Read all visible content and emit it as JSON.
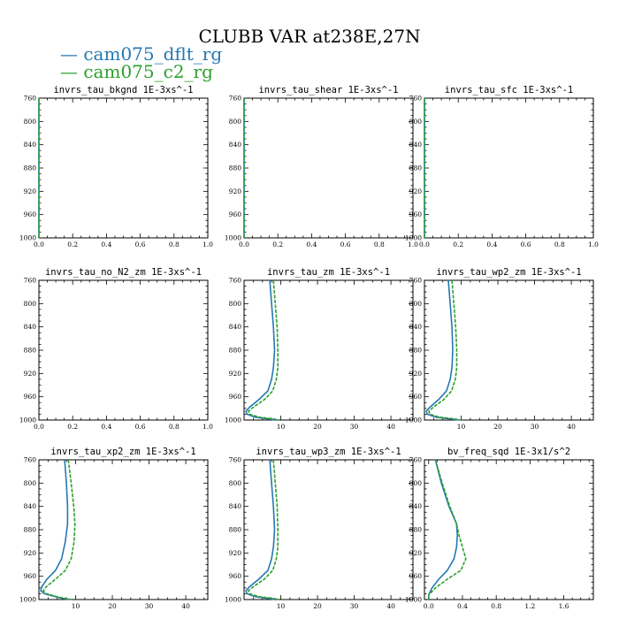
{
  "title": "CLUBB VAR at238E,27N",
  "colors": {
    "series0": "#2478b4",
    "series1": "#2ca02c"
  },
  "legend": [
    {
      "label": "cam075_dflt_rg",
      "color": "#2478b4"
    },
    {
      "label": "cam075_c2_rg",
      "color": "#2ca02c"
    }
  ],
  "chart_data": [
    {
      "type": "line",
      "title": "invrs_tau_bkgnd   1E-3xs^-1",
      "xlim": [
        0,
        1
      ],
      "ylim": [
        760,
        1000
      ],
      "y_inverted": true,
      "xticks": [
        0.0,
        0.2,
        0.4,
        0.6,
        0.8,
        1.0
      ],
      "xtick_labels": [
        "0.0",
        "0.2",
        "0.4",
        "0.6",
        "0.8",
        "1.0"
      ],
      "yticks": [
        760,
        800,
        840,
        880,
        920,
        960,
        1000
      ],
      "series": [
        {
          "name": "cam075_dflt_rg",
          "x": [
            0,
            0,
            0,
            0,
            0,
            0,
            0
          ],
          "y": [
            760,
            800,
            840,
            880,
            920,
            960,
            1000
          ]
        },
        {
          "name": "cam075_c2_rg",
          "x": [
            0,
            0,
            0,
            0,
            0,
            0,
            0
          ],
          "y": [
            760,
            800,
            840,
            880,
            920,
            960,
            1000
          ]
        }
      ]
    },
    {
      "type": "line",
      "title": "invrs_tau_shear   1E-3xs^-1",
      "xlim": [
        0,
        1
      ],
      "ylim": [
        760,
        1000
      ],
      "y_inverted": true,
      "xticks": [
        0.0,
        0.2,
        0.4,
        0.6,
        0.8,
        1.0
      ],
      "xtick_labels": [
        "0.0",
        "0.2",
        "0.4",
        "0.6",
        "0.8",
        "1.0"
      ],
      "yticks": [
        760,
        800,
        840,
        880,
        920,
        960,
        1000
      ],
      "series": [
        {
          "name": "cam075_dflt_rg",
          "x": [
            0,
            0,
            0,
            0,
            0,
            0,
            0
          ],
          "y": [
            760,
            800,
            840,
            880,
            920,
            960,
            1000
          ]
        },
        {
          "name": "cam075_c2_rg",
          "x": [
            0,
            0,
            0,
            0,
            0,
            0,
            0
          ],
          "y": [
            760,
            800,
            840,
            880,
            920,
            960,
            1000
          ]
        }
      ]
    },
    {
      "type": "line",
      "title": "invrs_tau_sfc   1E-3xs^-1",
      "xlim": [
        0,
        1
      ],
      "ylim": [
        760,
        1000
      ],
      "y_inverted": true,
      "xticks": [
        0.0,
        0.2,
        0.4,
        0.6,
        0.8,
        1.0
      ],
      "xtick_labels": [
        "0.0",
        "0.2",
        "0.4",
        "0.6",
        "0.8",
        "1.0"
      ],
      "yticks": [
        760,
        800,
        840,
        880,
        920,
        960,
        1000
      ],
      "series": [
        {
          "name": "cam075_dflt_rg",
          "x": [
            0,
            0,
            0,
            0,
            0,
            0,
            0
          ],
          "y": [
            760,
            800,
            840,
            880,
            920,
            960,
            1000
          ]
        },
        {
          "name": "cam075_c2_rg",
          "x": [
            0,
            0,
            0,
            0,
            0,
            0,
            0
          ],
          "y": [
            760,
            800,
            840,
            880,
            920,
            960,
            1000
          ]
        }
      ]
    },
    {
      "type": "line",
      "title": "invrs_tau_no_N2_zm   1E-3xs^-1",
      "xlim": [
        0,
        1
      ],
      "ylim": [
        760,
        1000
      ],
      "y_inverted": true,
      "xticks": [
        0.0,
        0.2,
        0.4,
        0.6,
        0.8,
        1.0
      ],
      "xtick_labels": [
        "0.0",
        "0.2",
        "0.4",
        "0.6",
        "0.8",
        "1.0"
      ],
      "yticks": [
        760,
        800,
        840,
        880,
        920,
        960,
        1000
      ],
      "series": []
    },
    {
      "type": "line",
      "title": "invrs_tau_zm   1E-3xs^-1",
      "xlim": [
        0,
        46
      ],
      "ylim": [
        760,
        1000
      ],
      "y_inverted": true,
      "xticks": [
        10,
        20,
        30,
        40
      ],
      "xtick_labels": [
        "10",
        "20",
        "30",
        "40"
      ],
      "yticks": [
        760,
        800,
        840,
        880,
        920,
        960,
        1000
      ],
      "series": [
        {
          "name": "cam075_dflt_rg",
          "x": [
            7.0,
            7.5,
            8.0,
            8.3,
            8.0,
            7.5,
            6.5,
            4.0,
            1.5,
            0.5,
            0.8,
            3.0,
            6.5,
            8.5
          ],
          "y": [
            760,
            800,
            840,
            880,
            910,
            930,
            950,
            965,
            978,
            985,
            990,
            995,
            998,
            1000
          ]
        },
        {
          "name": "cam075_c2_rg",
          "x": [
            8.0,
            8.5,
            9.0,
            9.2,
            9.2,
            8.8,
            7.8,
            5.5,
            2.5,
            1.2,
            1.5,
            4.0,
            8.0,
            9.5
          ],
          "y": [
            760,
            800,
            840,
            880,
            910,
            930,
            950,
            965,
            978,
            985,
            990,
            995,
            998,
            1000
          ]
        }
      ]
    },
    {
      "type": "line",
      "title": "invrs_tau_wp2_zm   1E-3xs^-1",
      "xlim": [
        0,
        46
      ],
      "ylim": [
        760,
        1000
      ],
      "y_inverted": true,
      "xticks": [
        10,
        20,
        30,
        40
      ],
      "xtick_labels": [
        "10",
        "20",
        "30",
        "40"
      ],
      "yticks": [
        760,
        800,
        840,
        880,
        920,
        960,
        1000
      ],
      "series": [
        {
          "name": "cam075_dflt_rg",
          "x": [
            6.5,
            7.0,
            7.5,
            7.7,
            7.5,
            7.0,
            6.0,
            3.8,
            1.5,
            0.5,
            0.8,
            3.0,
            7.0,
            9.5
          ],
          "y": [
            760,
            800,
            840,
            880,
            910,
            930,
            950,
            965,
            978,
            985,
            990,
            995,
            998,
            1000
          ]
        },
        {
          "name": "cam075_c2_rg",
          "x": [
            7.5,
            8.0,
            8.5,
            8.8,
            8.8,
            8.4,
            7.4,
            5.2,
            2.4,
            1.2,
            1.5,
            4.0,
            8.0,
            10.0
          ],
          "y": [
            760,
            800,
            840,
            880,
            910,
            930,
            950,
            965,
            978,
            985,
            990,
            995,
            998,
            1000
          ]
        }
      ]
    },
    {
      "type": "line",
      "title": "invrs_tau_xp2_zm   1E-3xs^-1",
      "xlim": [
        0,
        46
      ],
      "ylim": [
        760,
        1000
      ],
      "y_inverted": true,
      "xticks": [
        10,
        20,
        30,
        40
      ],
      "xtick_labels": [
        "10",
        "20",
        "30",
        "40"
      ],
      "yticks": [
        760,
        800,
        840,
        880,
        920,
        960,
        1000
      ],
      "series": [
        {
          "name": "cam075_dflt_rg",
          "x": [
            7.0,
            7.5,
            7.8,
            7.8,
            7.2,
            6.2,
            4.5,
            2.2,
            0.8,
            0.5,
            1.5,
            5.0,
            8.0
          ],
          "y": [
            760,
            800,
            840,
            870,
            900,
            930,
            950,
            965,
            978,
            985,
            990,
            996,
            1000
          ]
        },
        {
          "name": "cam075_c2_rg",
          "x": [
            8.0,
            8.8,
            9.5,
            9.8,
            9.6,
            8.8,
            7.2,
            4.5,
            2.0,
            1.2,
            2.0,
            5.5,
            9.0
          ],
          "y": [
            760,
            800,
            840,
            870,
            900,
            930,
            950,
            965,
            978,
            985,
            990,
            996,
            1000
          ]
        }
      ]
    },
    {
      "type": "line",
      "title": "invrs_tau_wp3_zm   1E-3xs^-1",
      "xlim": [
        0,
        46
      ],
      "ylim": [
        760,
        1000
      ],
      "y_inverted": true,
      "xticks": [
        10,
        20,
        30,
        40
      ],
      "xtick_labels": [
        "10",
        "20",
        "30",
        "40"
      ],
      "yticks": [
        760,
        800,
        840,
        880,
        920,
        960,
        1000
      ],
      "series": [
        {
          "name": "cam075_dflt_rg",
          "x": [
            7.0,
            7.5,
            8.0,
            8.3,
            8.0,
            7.5,
            6.5,
            4.0,
            1.5,
            0.5,
            0.8,
            3.0,
            6.5,
            8.5
          ],
          "y": [
            760,
            800,
            840,
            880,
            910,
            930,
            950,
            965,
            978,
            985,
            990,
            995,
            998,
            1000
          ]
        },
        {
          "name": "cam075_c2_rg",
          "x": [
            8.0,
            8.5,
            9.0,
            9.2,
            9.2,
            8.8,
            7.8,
            5.5,
            2.5,
            1.2,
            1.5,
            4.0,
            8.0,
            9.5
          ],
          "y": [
            760,
            800,
            840,
            880,
            910,
            930,
            950,
            965,
            978,
            985,
            990,
            995,
            998,
            1000
          ]
        }
      ]
    },
    {
      "type": "line",
      "title": "bv_freq_sqd   1E-3x1/s^2",
      "xlim": [
        -0.05,
        1.95
      ],
      "ylim": [
        760,
        1000
      ],
      "y_inverted": true,
      "xticks": [
        0.0,
        0.4,
        0.8,
        1.2,
        1.6
      ],
      "xtick_labels": [
        "0.0",
        "0.4",
        "0.8",
        "1.2",
        "1.6"
      ],
      "yticks": [
        760,
        800,
        840,
        880,
        920,
        960,
        1000
      ],
      "series": [
        {
          "name": "cam075_dflt_rg",
          "x": [
            0.08,
            0.15,
            0.24,
            0.33,
            0.34,
            0.33,
            0.3,
            0.22,
            0.12,
            0.04,
            0.0,
            0.0
          ],
          "y": [
            760,
            800,
            840,
            870,
            890,
            910,
            930,
            950,
            965,
            980,
            992,
            1000
          ]
        },
        {
          "name": "cam075_c2_rg",
          "x": [
            0.08,
            0.16,
            0.25,
            0.33,
            0.36,
            0.4,
            0.44,
            0.38,
            0.22,
            0.08,
            0.0,
            0.0
          ],
          "y": [
            760,
            800,
            840,
            870,
            890,
            910,
            930,
            950,
            965,
            980,
            992,
            1000
          ]
        }
      ]
    }
  ]
}
